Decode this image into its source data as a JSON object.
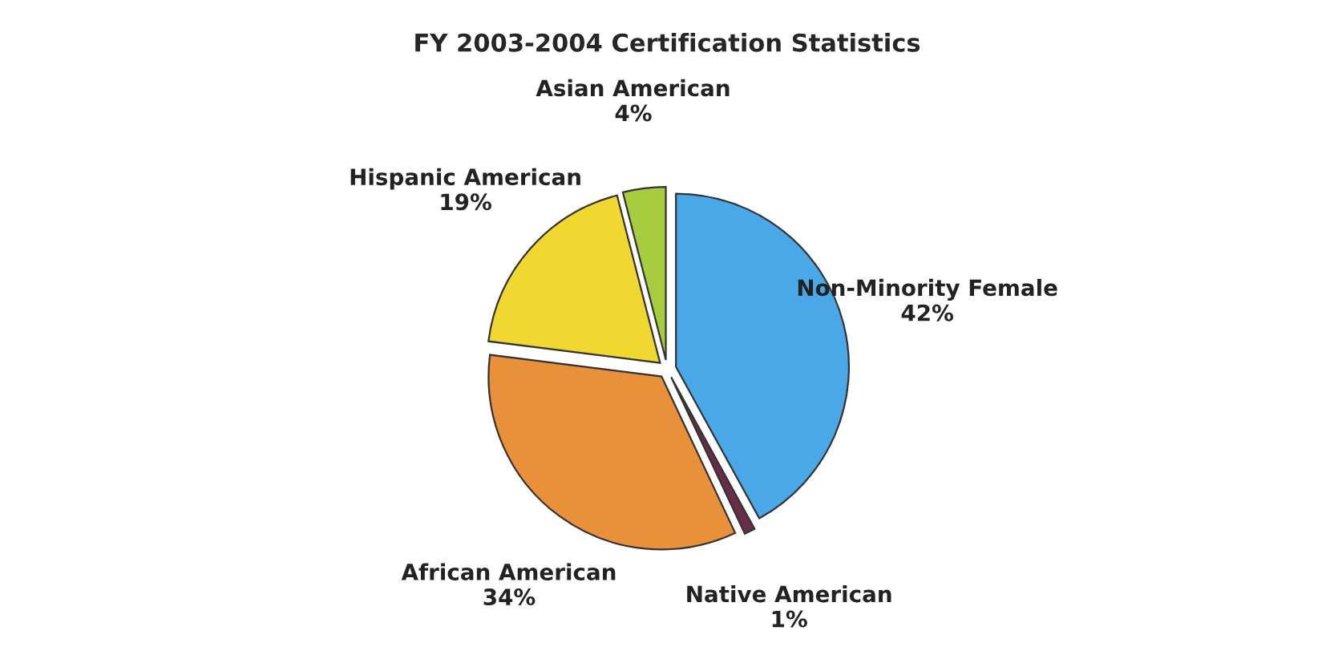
{
  "chart_data": {
    "type": "pie",
    "title": "FY 2003-2004 Certification Statistics",
    "categories": [
      "Non-Minority Female",
      "Native American",
      "African American",
      "Hispanic American",
      "Asian American"
    ],
    "values": [
      42,
      1,
      34,
      19,
      4
    ],
    "value_labels": [
      "42%",
      "1%",
      "34%",
      "19%",
      "4%"
    ],
    "colors": [
      "#4aa8e8",
      "#6b2c4a",
      "#e8903a",
      "#f0d830",
      "#a8cc40"
    ]
  }
}
